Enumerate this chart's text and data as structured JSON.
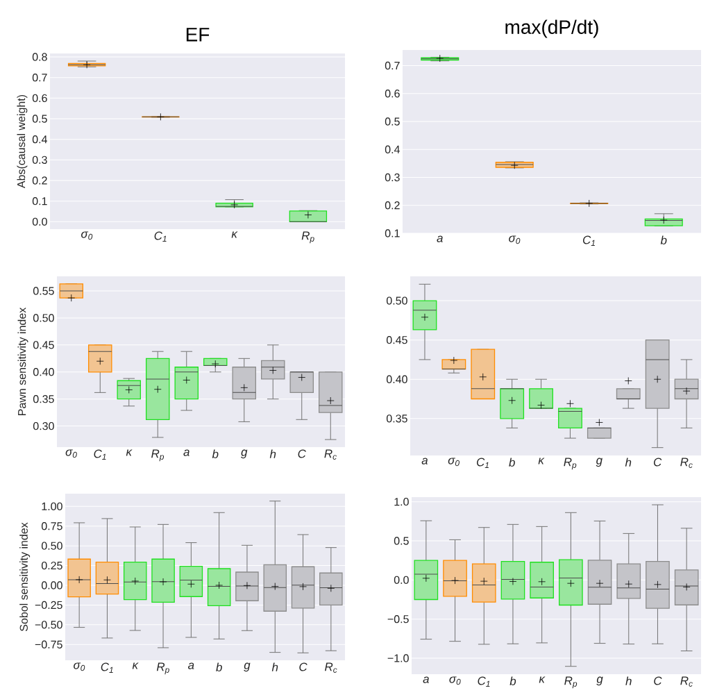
{
  "chart_data": [
    {
      "type": "box",
      "title": "EF",
      "ylabel": "Abs(causal weight)",
      "categories": [
        "σ$_{0}$",
        "C$_{1}$",
        "κ",
        "R$_{p}$"
      ],
      "boxes": [
        {
          "low": 0.752,
          "q1": 0.757,
          "median": 0.762,
          "q3": 0.768,
          "high": 0.78,
          "mean": 0.762
        },
        {
          "low": 0.507,
          "q1": 0.508,
          "median": 0.509,
          "q3": 0.51,
          "high": 0.511,
          "mean": 0.509
        },
        {
          "low": 0.072,
          "q1": 0.072,
          "median": 0.074,
          "q3": 0.09,
          "high": 0.107,
          "mean": 0.082
        },
        {
          "low": 0.0,
          "q1": 0.0,
          "median": 0.0,
          "q3": 0.052,
          "high": 0.054,
          "mean": 0.033
        }
      ],
      "colors": [
        "#ff8c00",
        "#ff8c00",
        "#20e020",
        "#20e020"
      ],
      "ylim": [
        -0.036,
        0.817
      ],
      "yticks": [
        {
          "value": 0,
          "label": "0.0"
        },
        0.1,
        0.2,
        0.3,
        0.4,
        0.5,
        0.6,
        0.7,
        0.8
      ],
      "grid": "y"
    },
    {
      "type": "box",
      "title": "max(dP/dt)",
      "categories": [
        "a",
        "σ$_{0}$",
        "C$_{1}$",
        "b"
      ],
      "boxes": [
        {
          "low": 0.717,
          "q1": 0.72,
          "median": 0.724,
          "q3": 0.728,
          "high": 0.73,
          "mean": 0.726
        },
        {
          "low": 0.334,
          "q1": 0.336,
          "median": 0.346,
          "q3": 0.354,
          "high": 0.356,
          "mean": 0.343
        },
        {
          "low": 0.205,
          "q1": 0.206,
          "median": 0.207,
          "q3": 0.208,
          "high": 0.209,
          "mean": 0.207
        },
        {
          "low": 0.126,
          "q1": 0.127,
          "median": 0.146,
          "q3": 0.151,
          "high": 0.17,
          "mean": 0.147
        }
      ],
      "colors": [
        "#20e020",
        "#ff8c00",
        "#ff8c00",
        "#20e020"
      ],
      "ylim": [
        0.1,
        0.756
      ],
      "yticks": [
        0.1,
        0.2,
        0.3,
        0.4,
        0.5,
        0.6,
        0.7
      ],
      "grid": "y"
    },
    {
      "type": "box",
      "ylabel": "Pawn sensitivity index",
      "categories": [
        "σ$_{0}$",
        "C$_{1}$",
        "κ",
        "R$_{p}$",
        "a",
        "b",
        "g",
        "h",
        "C",
        "R$_{c}$"
      ],
      "boxes": [
        {
          "low": 0.537,
          "q1": 0.537,
          "median": 0.55,
          "q3": 0.563,
          "high": 0.563,
          "mean": 0.537
        },
        {
          "low": 0.362,
          "q1": 0.4,
          "median": 0.438,
          "q3": 0.45,
          "high": 0.45,
          "mean": 0.42
        },
        {
          "low": 0.337,
          "q1": 0.35,
          "median": 0.375,
          "q3": 0.384,
          "high": 0.388,
          "mean": 0.367
        },
        {
          "low": 0.279,
          "q1": 0.312,
          "median": 0.387,
          "q3": 0.425,
          "high": 0.438,
          "mean": 0.368
        },
        {
          "low": 0.329,
          "q1": 0.35,
          "median": 0.4,
          "q3": 0.409,
          "high": 0.438,
          "mean": 0.385
        },
        {
          "low": 0.4,
          "q1": 0.412,
          "median": 0.412,
          "q3": 0.425,
          "high": 0.425,
          "mean": 0.415
        },
        {
          "low": 0.308,
          "q1": 0.35,
          "median": 0.362,
          "q3": 0.409,
          "high": 0.425,
          "mean": 0.371
        },
        {
          "low": 0.35,
          "q1": 0.387,
          "median": 0.409,
          "q3": 0.421,
          "high": 0.45,
          "mean": 0.403
        },
        {
          "low": 0.312,
          "q1": 0.362,
          "median": 0.4,
          "q3": 0.4,
          "high": 0.4,
          "mean": 0.39
        },
        {
          "low": 0.275,
          "q1": 0.325,
          "median": 0.338,
          "q3": 0.4,
          "high": 0.4,
          "mean": 0.347
        }
      ],
      "colors": [
        "#ff8c00",
        "#ff8c00",
        "#20e020",
        "#20e020",
        "#20e020",
        "#20e020",
        "#8c8c8c",
        "#8c8c8c",
        "#8c8c8c",
        "#8c8c8c"
      ],
      "ylim": [
        0.261,
        0.577
      ],
      "yticks": [
        {
          "value": 0.3,
          "label": "0.30"
        },
        0.35,
        {
          "value": 0.4,
          "label": "0.40"
        },
        0.45,
        {
          "value": 0.5,
          "label": "0.50"
        },
        0.55
      ],
      "grid": "y"
    },
    {
      "type": "box",
      "categories": [
        "a",
        "σ$_{0}$",
        "C$_{1}$",
        "b",
        "κ",
        "R$_{p}$",
        "g",
        "h",
        "C",
        "R$_{c}$"
      ],
      "boxes": [
        {
          "low": 0.425,
          "q1": 0.463,
          "median": 0.488,
          "q3": 0.5,
          "high": 0.521,
          "mean": 0.479
        },
        {
          "low": 0.408,
          "q1": 0.413,
          "median": 0.413,
          "q3": 0.425,
          "high": 0.425,
          "mean": 0.424
        },
        {
          "low": 0.375,
          "q1": 0.375,
          "median": 0.388,
          "q3": 0.438,
          "high": 0.438,
          "mean": 0.403
        },
        {
          "low": 0.338,
          "q1": 0.35,
          "median": 0.388,
          "q3": 0.388,
          "high": 0.4,
          "mean": 0.373
        },
        {
          "low": 0.363,
          "q1": 0.363,
          "median": 0.363,
          "q3": 0.388,
          "high": 0.4,
          "mean": 0.367
        },
        {
          "low": 0.325,
          "q1": 0.338,
          "median": 0.359,
          "q3": 0.363,
          "high": 0.363,
          "mean": 0.369
        },
        {
          "low": 0.325,
          "q1": 0.325,
          "median": 0.338,
          "q3": 0.338,
          "high": 0.338,
          "mean": 0.345
        },
        {
          "low": 0.363,
          "q1": 0.375,
          "median": 0.375,
          "q3": 0.388,
          "high": 0.388,
          "mean": 0.398
        },
        {
          "low": 0.313,
          "q1": 0.363,
          "median": 0.425,
          "q3": 0.45,
          "high": 0.45,
          "mean": 0.4
        },
        {
          "low": 0.338,
          "q1": 0.375,
          "median": 0.388,
          "q3": 0.4,
          "high": 0.425,
          "mean": 0.385
        }
      ],
      "colors": [
        "#20e020",
        "#ff8c00",
        "#ff8c00",
        "#20e020",
        "#20e020",
        "#20e020",
        "#8c8c8c",
        "#8c8c8c",
        "#8c8c8c",
        "#8c8c8c"
      ],
      "ylim": [
        0.303,
        0.531
      ],
      "yticks": [
        0.35,
        {
          "value": 0.4,
          "label": "0.40"
        },
        0.45,
        {
          "value": 0.5,
          "label": "0.50"
        }
      ],
      "grid": "y"
    },
    {
      "type": "box",
      "ylabel": "Sobol sensitivity index",
      "categories": [
        "σ$_{0}$",
        "C$_{1}$",
        "κ",
        "R$_{p}$",
        "a",
        "b",
        "g",
        "h",
        "C",
        "R$_{c}$"
      ],
      "boxes": [
        {
          "low": -0.533,
          "q1": -0.146,
          "median": 0.071,
          "q3": 0.332,
          "high": 0.792,
          "mean": 0.071
        },
        {
          "low": -0.668,
          "q1": -0.111,
          "median": 0.021,
          "q3": 0.293,
          "high": 0.845,
          "mean": 0.068
        },
        {
          "low": -0.572,
          "q1": -0.181,
          "median": 0.041,
          "q3": 0.293,
          "high": 0.739,
          "mean": 0.053
        },
        {
          "low": -0.791,
          "q1": -0.214,
          "median": 0.047,
          "q3": 0.332,
          "high": 0.771,
          "mean": 0.044
        },
        {
          "low": -0.66,
          "q1": -0.143,
          "median": 0.065,
          "q3": 0.241,
          "high": 0.54,
          "mean": 0.015
        },
        {
          "low": -0.68,
          "q1": -0.258,
          "median": -0.014,
          "q3": 0.211,
          "high": 0.921,
          "mean": 0.0
        },
        {
          "low": -0.574,
          "q1": -0.196,
          "median": -0.008,
          "q3": 0.167,
          "high": 0.507,
          "mean": -0.003
        },
        {
          "low": -0.85,
          "q1": -0.328,
          "median": -0.029,
          "q3": 0.261,
          "high": 1.067,
          "mean": -0.014
        },
        {
          "low": -0.856,
          "q1": -0.29,
          "median": 0.003,
          "q3": 0.235,
          "high": 0.642,
          "mean": -0.017
        },
        {
          "low": -0.829,
          "q1": -0.249,
          "median": -0.032,
          "q3": 0.156,
          "high": 0.478,
          "mean": -0.038
        }
      ],
      "colors": [
        "#ff8c00",
        "#ff8c00",
        "#20e020",
        "#20e020",
        "#20e020",
        "#20e020",
        "#8c8c8c",
        "#8c8c8c",
        "#8c8c8c",
        "#8c8c8c"
      ],
      "ylim": [
        -0.95,
        1.161
      ],
      "yticks": [
        {
          "value": -0.75,
          "label": "−0.75"
        },
        {
          "value": -0.5,
          "label": "−0.50"
        },
        {
          "value": -0.25,
          "label": "−0.25"
        },
        {
          "value": 0,
          "label": "0.00"
        },
        0.25,
        {
          "value": 0.5,
          "label": "0.50"
        },
        0.75,
        {
          "value": 1,
          "label": "1.00"
        }
      ],
      "grid": "y"
    },
    {
      "type": "box",
      "categories": [
        "a",
        "σ$_{0}$",
        "C$_{1}$",
        "b",
        "κ",
        "R$_{p}$",
        "g",
        "h",
        "C",
        "R$_{c}$"
      ],
      "boxes": [
        {
          "low": -0.757,
          "q1": -0.25,
          "median": 0.073,
          "q3": 0.25,
          "high": 0.757,
          "mean": 0.022
        },
        {
          "low": -0.784,
          "q1": -0.209,
          "median": -0.01,
          "q3": 0.25,
          "high": 0.514,
          "mean": -0.007
        },
        {
          "low": -0.822,
          "q1": -0.283,
          "median": -0.064,
          "q3": 0.206,
          "high": 0.671,
          "mean": -0.016
        },
        {
          "low": -0.816,
          "q1": -0.244,
          "median": 0.007,
          "q3": 0.236,
          "high": 0.71,
          "mean": -0.019
        },
        {
          "low": -0.804,
          "q1": -0.23,
          "median": -0.09,
          "q3": 0.227,
          "high": 0.683,
          "mean": -0.022
        },
        {
          "low": -1.104,
          "q1": -0.321,
          "median": 0.025,
          "q3": 0.259,
          "high": 0.861,
          "mean": -0.043
        },
        {
          "low": -0.81,
          "q1": -0.31,
          "median": -0.093,
          "q3": 0.253,
          "high": 0.754,
          "mean": -0.043
        },
        {
          "low": -0.819,
          "q1": -0.236,
          "median": -0.102,
          "q3": 0.206,
          "high": 0.594,
          "mean": -0.052
        },
        {
          "low": -0.816,
          "q1": -0.363,
          "median": -0.117,
          "q3": 0.236,
          "high": 0.961,
          "mean": -0.058
        },
        {
          "low": -0.907,
          "q1": -0.319,
          "median": -0.076,
          "q3": 0.129,
          "high": 0.661,
          "mean": -0.09
        }
      ],
      "colors": [
        "#20e020",
        "#ff8c00",
        "#ff8c00",
        "#20e020",
        "#20e020",
        "#20e020",
        "#8c8c8c",
        "#8c8c8c",
        "#8c8c8c",
        "#8c8c8c"
      ],
      "ylim": [
        -1.204,
        1.059
      ],
      "yticks": [
        {
          "value": -1,
          "label": "−1.0"
        },
        {
          "value": -0.5,
          "label": "−0.5"
        },
        {
          "value": 0,
          "label": "0.0"
        },
        {
          "value": 0.5,
          "label": "0.5"
        },
        {
          "value": 1,
          "label": "1.0"
        }
      ],
      "grid": "y"
    }
  ]
}
